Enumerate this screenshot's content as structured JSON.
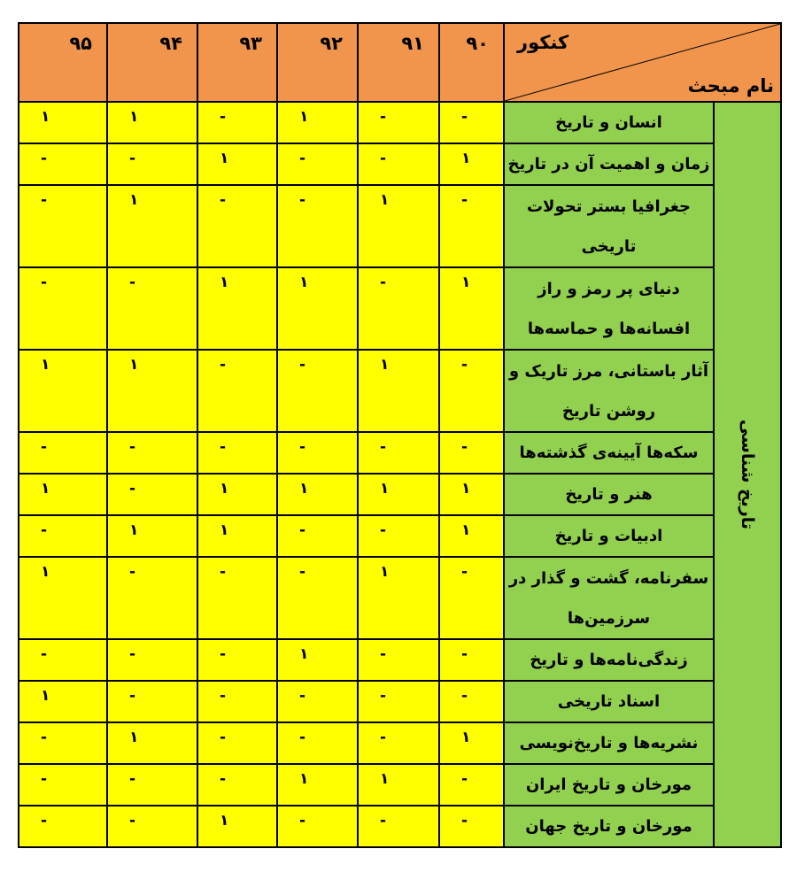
{
  "table": {
    "colors": {
      "header": "#F0954B",
      "topic": "#92D050",
      "value": "#FFFF00",
      "border": "#000000",
      "text": "#000000",
      "page_background": "#FFFFFF"
    },
    "header": {
      "years": [
        "۹۵",
        "۹۴",
        "۹۳",
        "۹۲",
        "۹۱",
        "۹۰"
      ],
      "corner": {
        "top_label": "کنکور",
        "bottom_label": "نام مبحث"
      }
    },
    "category": {
      "label": "تاریخ شناسی"
    },
    "rows": [
      {
        "topic_lines": [
          "انسان و تاریخ"
        ],
        "values": [
          "۱",
          "۱",
          "-",
          "۱",
          "-",
          "-"
        ]
      },
      {
        "topic_lines": [
          "زمان و اهمیت آن در  تاریخ"
        ],
        "values": [
          "-",
          "-",
          "۱",
          "-",
          "-",
          "۱"
        ]
      },
      {
        "topic_lines": [
          "جغرافیا بستر  تحولات",
          "تاریخی"
        ],
        "values": [
          "-",
          "۱",
          "-",
          "-",
          "۱",
          "-"
        ]
      },
      {
        "topic_lines": [
          "دنیای پر رمز و راز",
          "افسانه‌ها و حماسه‌ها"
        ],
        "values": [
          "-",
          "-",
          "۱",
          "۱",
          "-",
          "۱"
        ]
      },
      {
        "topic_lines": [
          "آثار باستانی، مرز تاریک و",
          "روشن تاریخ"
        ],
        "values": [
          "۱",
          "۱",
          "-",
          "-",
          "۱",
          "-"
        ]
      },
      {
        "topic_lines": [
          "سکه‌ها آیینه‌ی گذشته‌ها"
        ],
        "values": [
          "-",
          "-",
          "-",
          "-",
          "-",
          "-"
        ]
      },
      {
        "topic_lines": [
          "هنر  و  تاریخ"
        ],
        "values": [
          "۱",
          "-",
          "۱",
          "۱",
          "۱",
          "۱"
        ]
      },
      {
        "topic_lines": [
          "ادبیات  و  تاریخ"
        ],
        "values": [
          "-",
          "۱",
          "۱",
          "-",
          "-",
          "۱"
        ]
      },
      {
        "topic_lines": [
          "سفرنامه، گشت و گذار در",
          "سرزمین‌ها"
        ],
        "values": [
          "۱",
          "-",
          "-",
          "-",
          "۱",
          "-"
        ]
      },
      {
        "topic_lines": [
          "زندگی‌نامه‌ها و  تاریخ"
        ],
        "values": [
          "-",
          "-",
          "-",
          "۱",
          "-",
          "-"
        ]
      },
      {
        "topic_lines": [
          "اسناد تاریخی"
        ],
        "values": [
          "۱",
          "-",
          "-",
          "-",
          "-",
          "-"
        ]
      },
      {
        "topic_lines": [
          "نشریه‌ها و تاریخ‌نویسی"
        ],
        "values": [
          "-",
          "۱",
          "-",
          "-",
          "-",
          "۱"
        ]
      },
      {
        "topic_lines": [
          "مورخان و  تاریخ ایران"
        ],
        "values": [
          "-",
          "-",
          "-",
          "۱",
          "۱",
          "-"
        ]
      },
      {
        "topic_lines": [
          "مورخان و  تاریخ جهان"
        ],
        "values": [
          "-",
          "-",
          "۱",
          "-",
          "-",
          "-"
        ]
      }
    ]
  }
}
